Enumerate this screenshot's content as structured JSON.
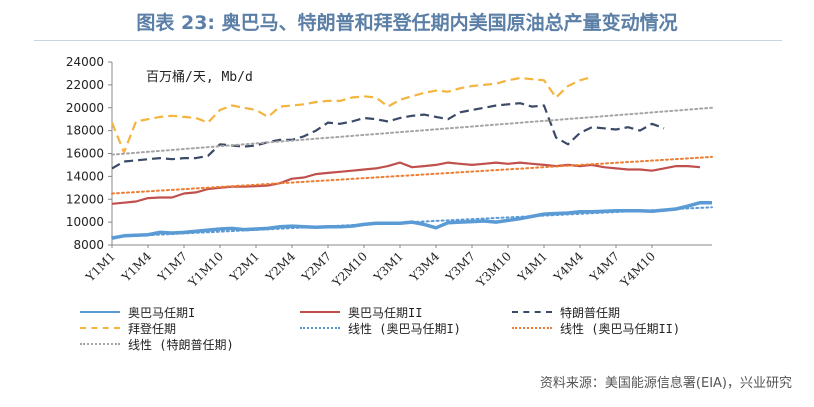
{
  "header": {
    "title": "图表 23: 奥巴马、特朗普和拜登任期内美国原油总产量变动情况"
  },
  "footer": {
    "source": "资料来源：美国能源信息署(EIA)，兴业研究"
  },
  "chart_data": {
    "type": "line",
    "unit": "百万桶/天, Mb/d",
    "ylim": [
      8000,
      24000
    ],
    "yticks": [
      8000,
      10000,
      12000,
      14000,
      16000,
      18000,
      20000,
      22000,
      24000
    ],
    "xtick_labels": [
      "Y1M1",
      "Y1M4",
      "Y1M7",
      "Y1M10",
      "Y2M1",
      "Y2M4",
      "Y2M7",
      "Y2M10",
      "Y3M1",
      "Y3M4",
      "Y3M7",
      "Y3M10",
      "Y4M1",
      "Y4M4",
      "Y4M7",
      "Y4M10"
    ],
    "legend_placement": "bottom",
    "grid": false,
    "series": [
      {
        "name": "奥巴马任期I",
        "color": "#5b9bd5",
        "style": "solid",
        "values": [
          8600,
          8800,
          8850,
          8900,
          9100,
          9050,
          9100,
          9200,
          9300,
          9400,
          9450,
          9350,
          9400,
          9450,
          9600,
          9650,
          9600,
          9550,
          9600,
          9600,
          9650,
          9800,
          9900,
          9900,
          9900,
          10000,
          9800,
          9500,
          9950,
          10000,
          10050,
          10100,
          10000,
          10150,
          10300,
          10500,
          10700,
          10750,
          10800,
          10900,
          10900,
          10950,
          11000,
          11000,
          11000,
          10950,
          11050,
          11150,
          11400,
          11700,
          11700
        ]
      },
      {
        "name": "奥巴马任期II",
        "color": "#c0504d",
        "style": "solid",
        "values": [
          11600,
          11700,
          11800,
          12100,
          12150,
          12150,
          12500,
          12600,
          12900,
          13000,
          13100,
          13100,
          13150,
          13200,
          13400,
          13800,
          13900,
          14200,
          14300,
          14400,
          14500,
          14600,
          14700,
          14900,
          15200,
          14800,
          14900,
          15000,
          15200,
          15100,
          15000,
          15100,
          15200,
          15100,
          15200,
          15100,
          15000,
          14900,
          15000,
          14900,
          15000,
          14800,
          14700,
          14600,
          14600,
          14500,
          14700,
          14900,
          14900,
          14800
        ]
      },
      {
        "name": "特朗普任期",
        "color": "#3b4a66",
        "style": "dashed",
        "values": [
          14700,
          15300,
          15400,
          15500,
          15600,
          15500,
          15600,
          15600,
          15800,
          16800,
          16700,
          16600,
          16700,
          17000,
          17200,
          17200,
          17500,
          18000,
          18700,
          18600,
          18800,
          19100,
          19000,
          18800,
          19100,
          19300,
          19400,
          19200,
          19000,
          19600,
          19800,
          20000,
          20200,
          20300,
          20400,
          20100,
          20200,
          17400,
          16800,
          17800,
          18300,
          18200,
          18100,
          18300,
          18000,
          18600,
          18200
        ]
      },
      {
        "name": "拜登任期",
        "color": "#f4b43d",
        "style": "dashed",
        "values": [
          18700,
          16100,
          18800,
          19000,
          19200,
          19300,
          19200,
          19100,
          18700,
          19800,
          20200,
          20000,
          19800,
          19200,
          20100,
          20200,
          20300,
          20500,
          20600,
          20600,
          20900,
          21000,
          20900,
          20100,
          20700,
          21000,
          21300,
          21500,
          21400,
          21700,
          21900,
          22000,
          22100,
          22400,
          22600,
          22500,
          22400,
          20900,
          21900,
          22400,
          22700
        ]
      },
      {
        "name": "线性 (奥巴马任期I)",
        "color": "#5b9bd5",
        "style": "dotted",
        "values": [
          8700,
          11300
        ]
      },
      {
        "name": "线性 (奥巴马任期II)",
        "color": "#ed7d31",
        "style": "dotted",
        "values": [
          12500,
          15700
        ]
      },
      {
        "name": "线性 (特朗普任期)",
        "color": "#a5a5a5",
        "style": "dotted",
        "values": [
          15900,
          20000
        ]
      }
    ]
  }
}
